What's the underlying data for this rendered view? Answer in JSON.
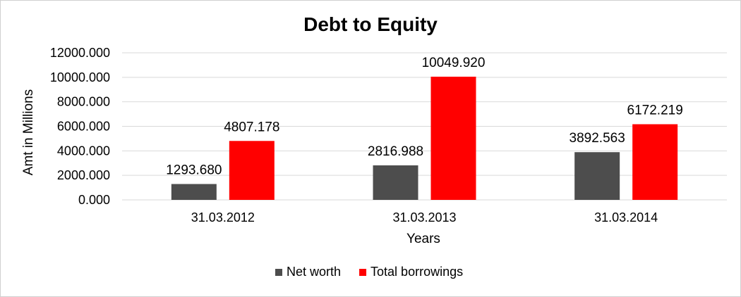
{
  "chart_data": {
    "type": "bar",
    "title": "Debt to Equity",
    "xlabel": "Years",
    "ylabel": "Amt in Millions",
    "categories": [
      "31.03.2012",
      "31.03.2013",
      "31.03.2014"
    ],
    "series": [
      {
        "name": "Net worth",
        "color": "#4d4d4d",
        "values": [
          1293.68,
          2816.988,
          3892.563
        ],
        "labels": [
          "1293.680",
          "2816.988",
          "3892.563"
        ]
      },
      {
        "name": "Total borrowings",
        "color": "#ff0000",
        "values": [
          4807.178,
          10049.92,
          6172.219
        ],
        "labels": [
          "4807.178",
          "10049.920",
          "6172.219"
        ]
      }
    ],
    "ylim": [
      0,
      12000
    ],
    "yticks": [
      "0.000",
      "2000.000",
      "4000.000",
      "6000.000",
      "8000.000",
      "10000.000",
      "12000.000"
    ],
    "ytick_values": [
      0,
      2000,
      4000,
      6000,
      8000,
      10000,
      12000
    ],
    "grid": true,
    "legend_position": "bottom"
  }
}
